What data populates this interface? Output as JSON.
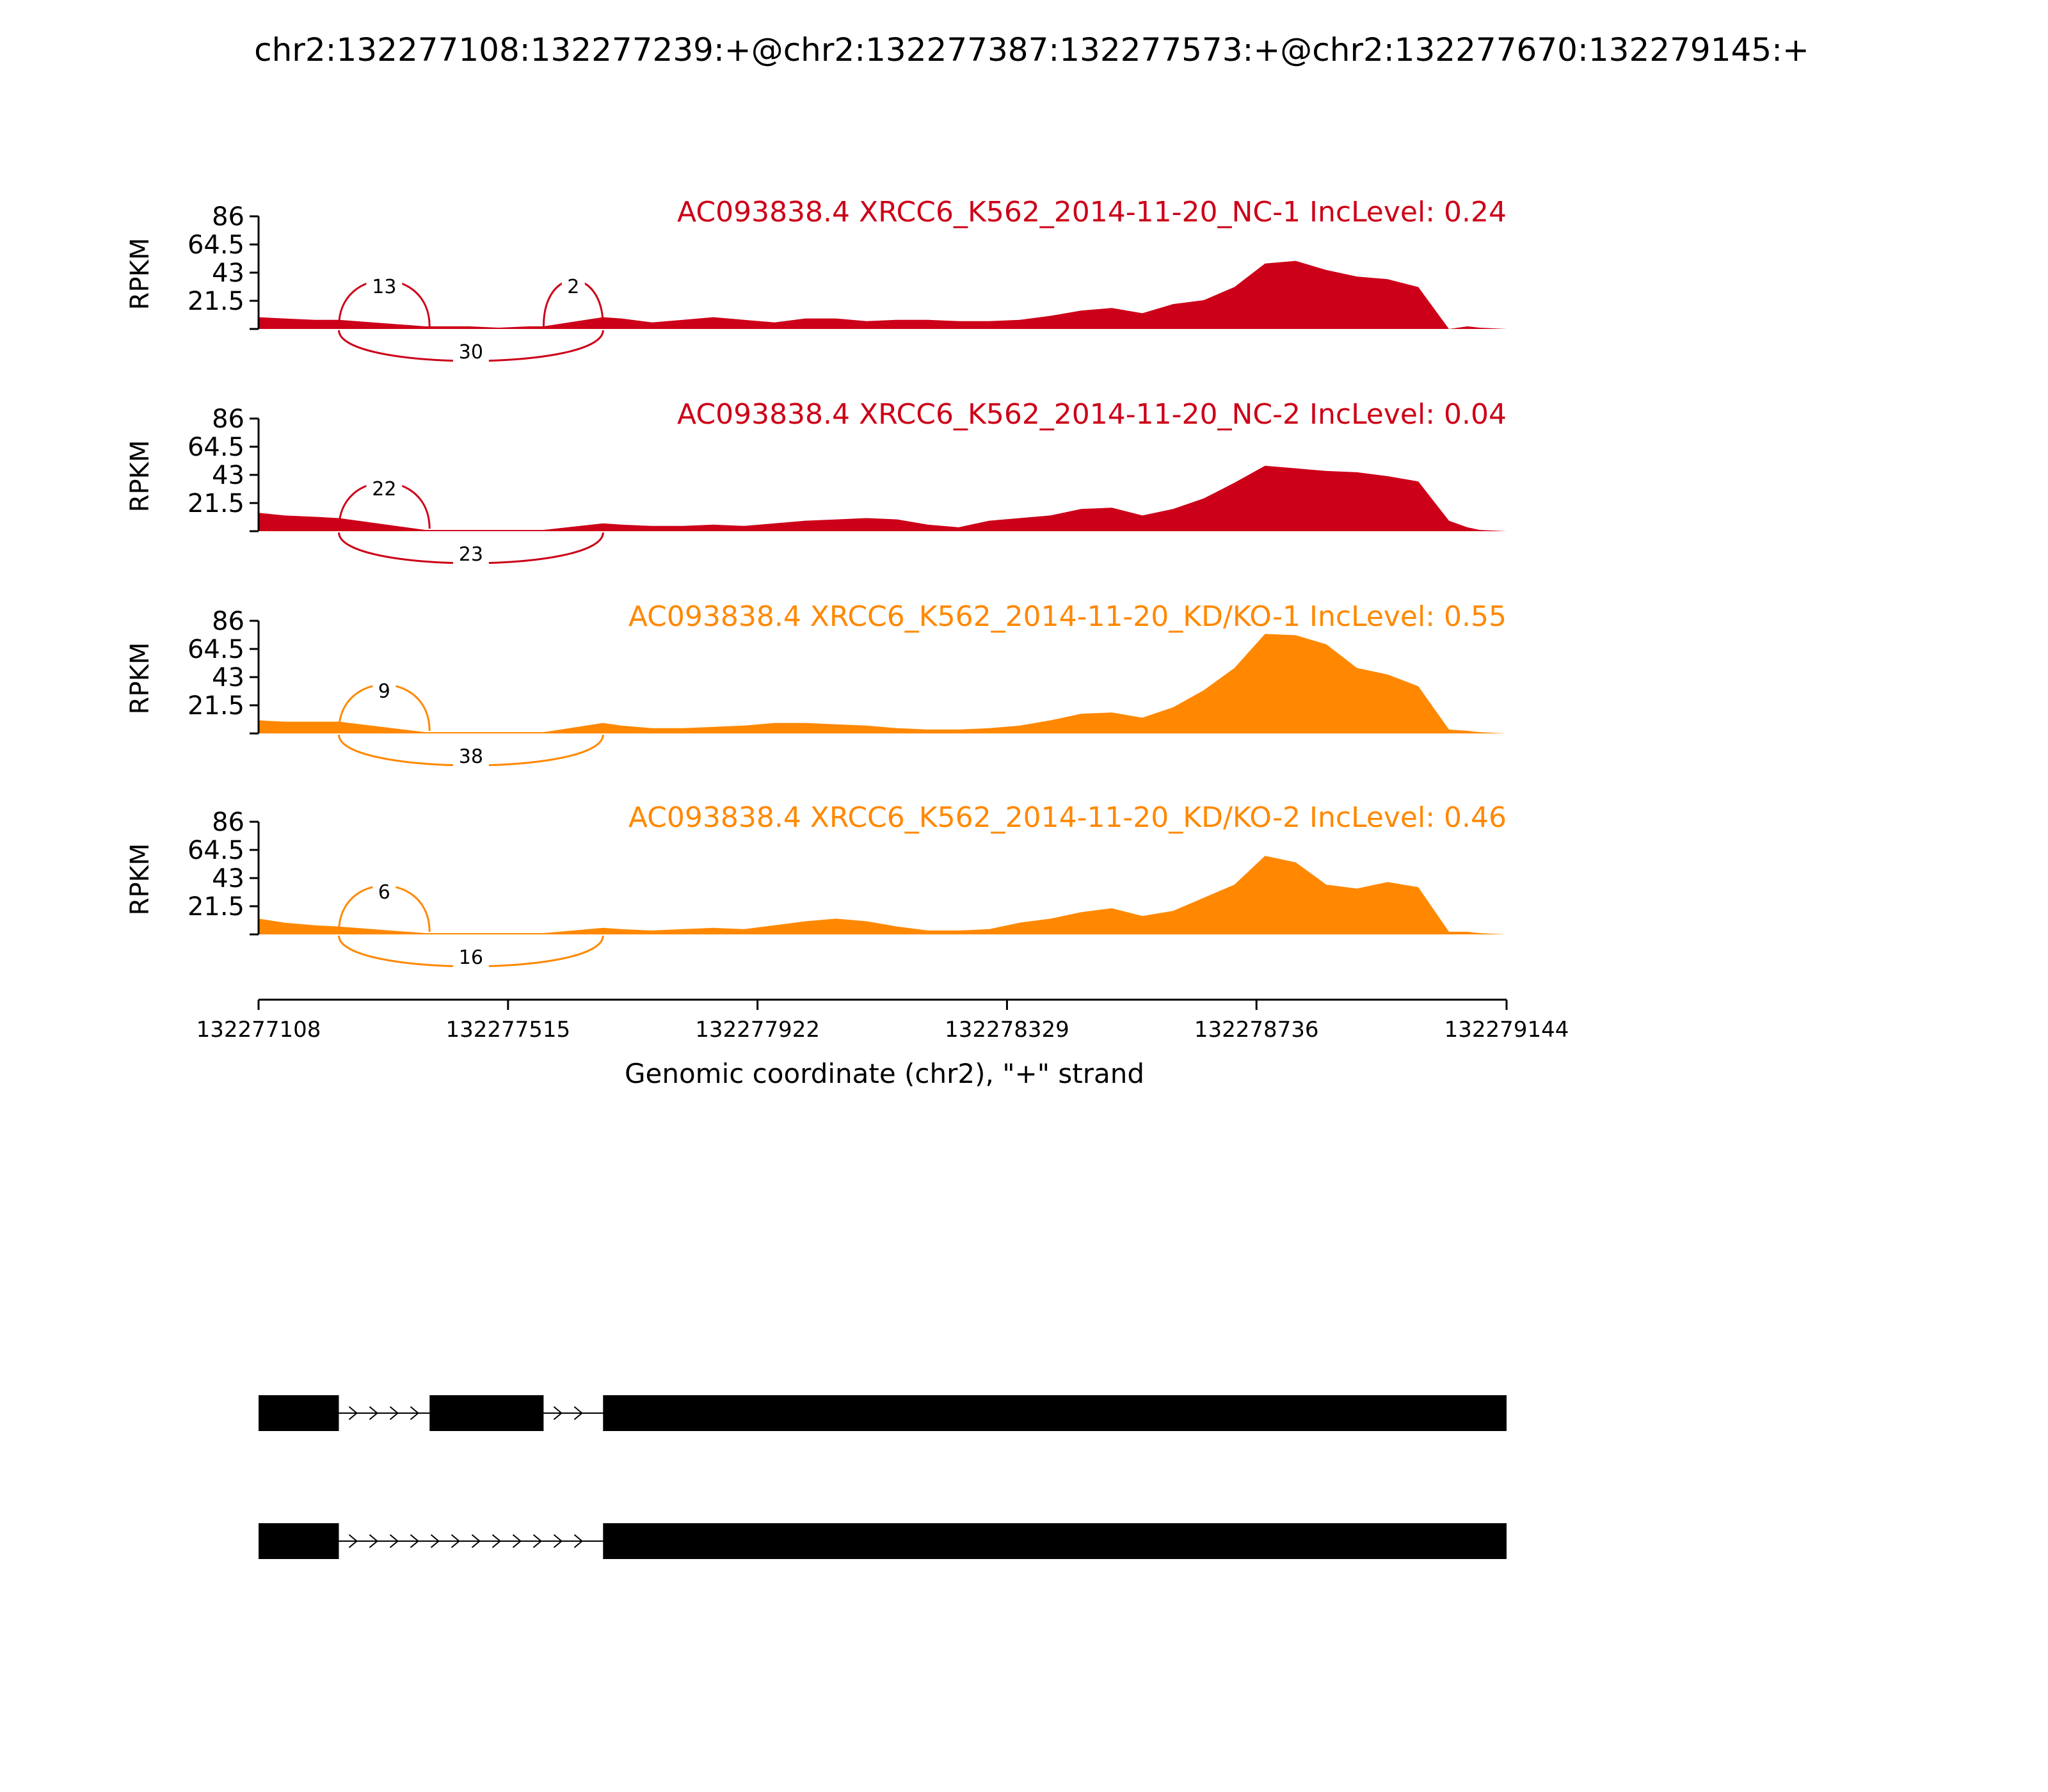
{
  "title": "chr2:132277108:132277239:+@chr2:132277387:132277573:+@chr2:132277670:132279145:+",
  "chart_data": {
    "type": "area",
    "title": "chr2:132277108:132277239:+@chr2:132277387:132277573:+@chr2:132277670:132279145:+",
    "xlabel": "Genomic coordinate (chr2), \"+\" strand",
    "ylabel": "RPKM",
    "xlim": [
      132277108,
      132279144
    ],
    "ylim": [
      0,
      86
    ],
    "x_ticks": [
      "132277108",
      "132277515",
      "132277922",
      "132278329",
      "132278736",
      "132279144"
    ],
    "x_tick_values": [
      132277108,
      132277515,
      132277922,
      132278329,
      132278736,
      132279144
    ],
    "y_ticks": [
      "86",
      "64.5",
      "43",
      "21.5"
    ],
    "y_tick_values": [
      86,
      64.5,
      43,
      21.5
    ],
    "colors": {
      "NC": "#cc0018",
      "KD": "#ff8800"
    },
    "x": [
      132277108,
      132277150,
      132277200,
      132277239,
      132277380,
      132277400,
      132277450,
      132277500,
      132277550,
      132277573,
      132277670,
      132277700,
      132277750,
      132277800,
      132277850,
      132277900,
      132277950,
      132278000,
      132278050,
      132278100,
      132278150,
      132278200,
      132278250,
      132278300,
      132278350,
      132278400,
      132278450,
      132278500,
      132278550,
      132278600,
      132278650,
      132278700,
      132278750,
      132278800,
      132278850,
      132278900,
      132278950,
      132279000,
      132279050,
      132279080,
      132279100,
      132279144
    ],
    "series": [
      {
        "name": "AC093838.4 XRCC6_K562_2014-11-20_NC-1 IncLevel: 0.24",
        "color": "#cc0018",
        "values": [
          9,
          8,
          7,
          7,
          2,
          2,
          2,
          1,
          2,
          2,
          9,
          8,
          5,
          7,
          9,
          7,
          5,
          8,
          8,
          6,
          7,
          7,
          6,
          6,
          7,
          10,
          14,
          16,
          12,
          19,
          22,
          32,
          50,
          52,
          45,
          40,
          38,
          32,
          0,
          2,
          1,
          0
        ]
      },
      {
        "name": "AC093838.4 XRCC6_K562_2014-11-20_NC-2 IncLevel: 0.04",
        "color": "#cc0018",
        "values": [
          14,
          12,
          11,
          10,
          1,
          1,
          1,
          1,
          1,
          1,
          6,
          5,
          4,
          4,
          5,
          4,
          6,
          8,
          9,
          10,
          9,
          5,
          3,
          8,
          10,
          12,
          17,
          18,
          12,
          17,
          25,
          37,
          50,
          48,
          46,
          45,
          42,
          38,
          8,
          3,
          1,
          0
        ]
      },
      {
        "name": "AC093838.4 XRCC6_K562_2014-11-20_KD/KO-1 IncLevel: 0.55",
        "color": "#ff8800",
        "values": [
          10,
          9,
          9,
          9,
          1,
          1,
          1,
          1,
          1,
          1,
          8,
          6,
          4,
          4,
          5,
          6,
          8,
          8,
          7,
          6,
          4,
          3,
          3,
          4,
          6,
          10,
          15,
          16,
          12,
          20,
          33,
          50,
          76,
          75,
          68,
          50,
          45,
          36,
          3,
          2,
          1,
          0
        ]
      },
      {
        "name": "AC093838.4 XRCC6_K562_2014-11-20_KD/KO-2 IncLevel: 0.46",
        "color": "#ff8800",
        "values": [
          12,
          9,
          7,
          6,
          1,
          1,
          1,
          1,
          1,
          1,
          5,
          4,
          3,
          4,
          5,
          4,
          7,
          10,
          12,
          10,
          6,
          3,
          3,
          4,
          9,
          12,
          17,
          20,
          14,
          18,
          28,
          38,
          60,
          55,
          38,
          35,
          40,
          36,
          2,
          2,
          1,
          0
        ]
      }
    ],
    "junctions": [
      [
        {
          "start": 132277239,
          "end": 132277387,
          "count": 13,
          "side": "top"
        },
        {
          "start": 132277573,
          "end": 132277670,
          "count": 2,
          "side": "top"
        },
        {
          "start": 132277239,
          "end": 132277670,
          "count": 30,
          "side": "bottom"
        }
      ],
      [
        {
          "start": 132277239,
          "end": 132277387,
          "count": 22,
          "side": "top"
        },
        {
          "start": 132277239,
          "end": 132277670,
          "count": 23,
          "side": "bottom"
        }
      ],
      [
        {
          "start": 132277239,
          "end": 132277387,
          "count": 9,
          "side": "top"
        },
        {
          "start": 132277239,
          "end": 132277670,
          "count": 38,
          "side": "bottom"
        }
      ],
      [
        {
          "start": 132277239,
          "end": 132277387,
          "count": 6,
          "side": "top"
        },
        {
          "start": 132277239,
          "end": 132277670,
          "count": 16,
          "side": "bottom"
        }
      ]
    ],
    "isoforms": [
      {
        "exons": [
          [
            132277108,
            132277239
          ],
          [
            132277387,
            132277573
          ],
          [
            132277670,
            132279144
          ]
        ]
      },
      {
        "exons": [
          [
            132277108,
            132277239
          ],
          [
            132277670,
            132279144
          ]
        ]
      }
    ]
  }
}
